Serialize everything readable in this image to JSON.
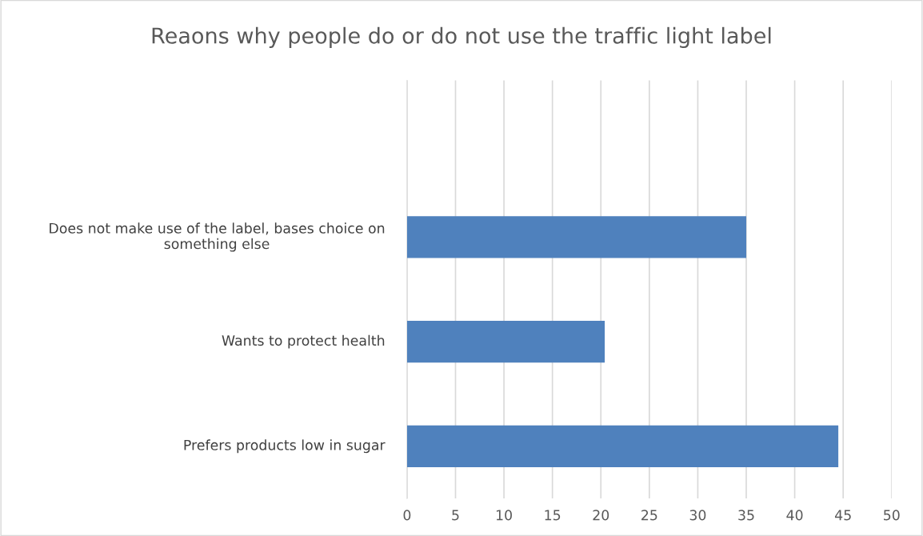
{
  "chart_data": {
    "type": "bar",
    "orientation": "horizontal",
    "title": "Reaons why people do or do not use the traffic light label",
    "categories": [
      null,
      "Does not make use of the label, bases choice on something else",
      "Wants to protect health",
      "Prefers products low in sugar"
    ],
    "values": [
      null,
      35.0,
      20.4,
      44.5
    ],
    "color": "#4f81bd",
    "xlim": [
      0,
      50
    ],
    "xticks": [
      0,
      5,
      10,
      15,
      20,
      25,
      30,
      35,
      40,
      45,
      50
    ],
    "grid": "x"
  }
}
